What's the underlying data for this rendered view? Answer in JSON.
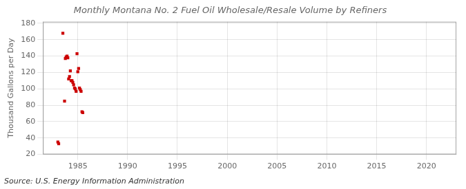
{
  "chart_data": {
    "type": "scatter",
    "title": "Monthly Montana No. 2 Fuel Oil Wholesale/Resale Volume by Refiners",
    "ylabel": "Thousand Gallons per Day",
    "annotation": "Source: U.S. Energy Information Administration",
    "color": "#cc0000",
    "marker": "square",
    "x": [
      1983.0,
      1983.08,
      1983.5,
      1983.67,
      1983.75,
      1983.83,
      1983.92,
      1984.0,
      1984.08,
      1984.17,
      1984.25,
      1984.33,
      1984.42,
      1984.5,
      1984.58,
      1984.67,
      1984.75,
      1984.83,
      1984.92,
      1985.0,
      1985.08,
      1985.17,
      1985.25,
      1985.33,
      1985.42,
      1985.5
    ],
    "values": [
      35,
      33,
      168,
      85,
      137,
      139,
      140,
      138,
      112,
      115,
      122,
      110,
      110,
      108,
      105,
      101,
      100,
      97,
      143,
      121,
      125,
      101,
      99,
      97,
      72,
      71
    ],
    "xlim": [
      1981.5,
      2023
    ],
    "ylim": [
      20,
      182
    ],
    "xticks": [
      1985,
      1990,
      1995,
      2000,
      2005,
      2010,
      2015,
      2020
    ],
    "yticks": [
      20,
      40,
      60,
      80,
      100,
      120,
      140,
      160,
      180
    ],
    "grid": true
  }
}
